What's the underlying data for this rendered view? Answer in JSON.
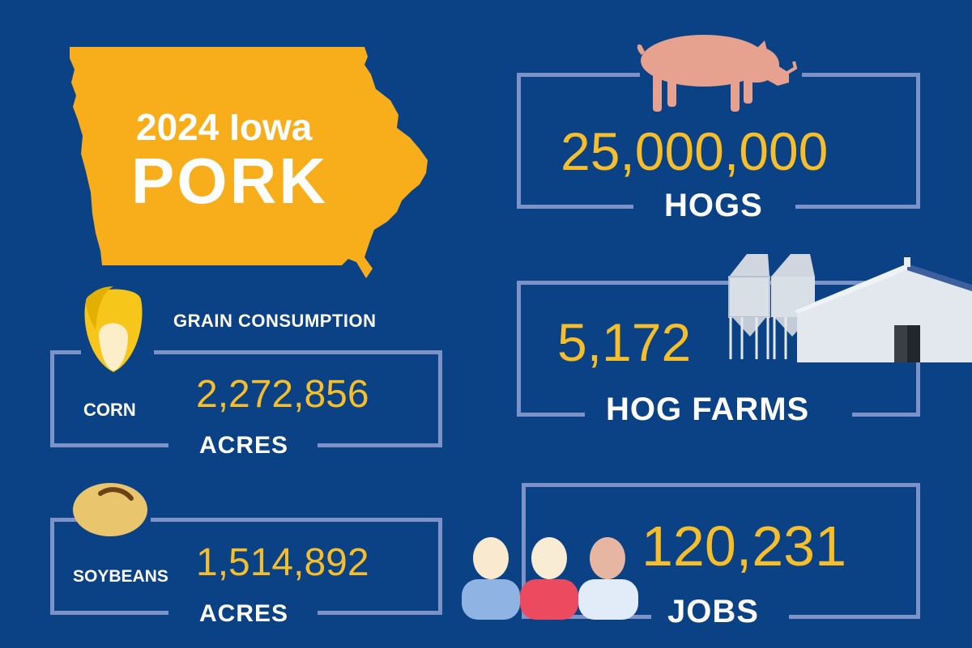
{
  "title": {
    "year_line": "2024 Iowa",
    "main": "PORK"
  },
  "hogs": {
    "value": "25,000,000",
    "label": "HOGS"
  },
  "farms": {
    "value": "5,172",
    "label": "HOG FARMS"
  },
  "jobs": {
    "value": "120,231",
    "label": "JOBS"
  },
  "grain": {
    "heading": "GRAIN CONSUMPTION",
    "corn": {
      "name": "CORN",
      "value": "2,272,856",
      "unit": "ACRES"
    },
    "soybeans": {
      "name": "SOYBEANS",
      "value": "1,514,892",
      "unit": "ACRES"
    }
  },
  "icons": [
    "iowa-map-icon",
    "pig-icon",
    "hog-barn-icon",
    "corn-kernel-icon",
    "soybean-icon",
    "people-icon"
  ],
  "colors": {
    "background": "#0b4185",
    "accent": "#f5be2a",
    "frame": "#7d93c8",
    "map": "#f8ae1a"
  }
}
